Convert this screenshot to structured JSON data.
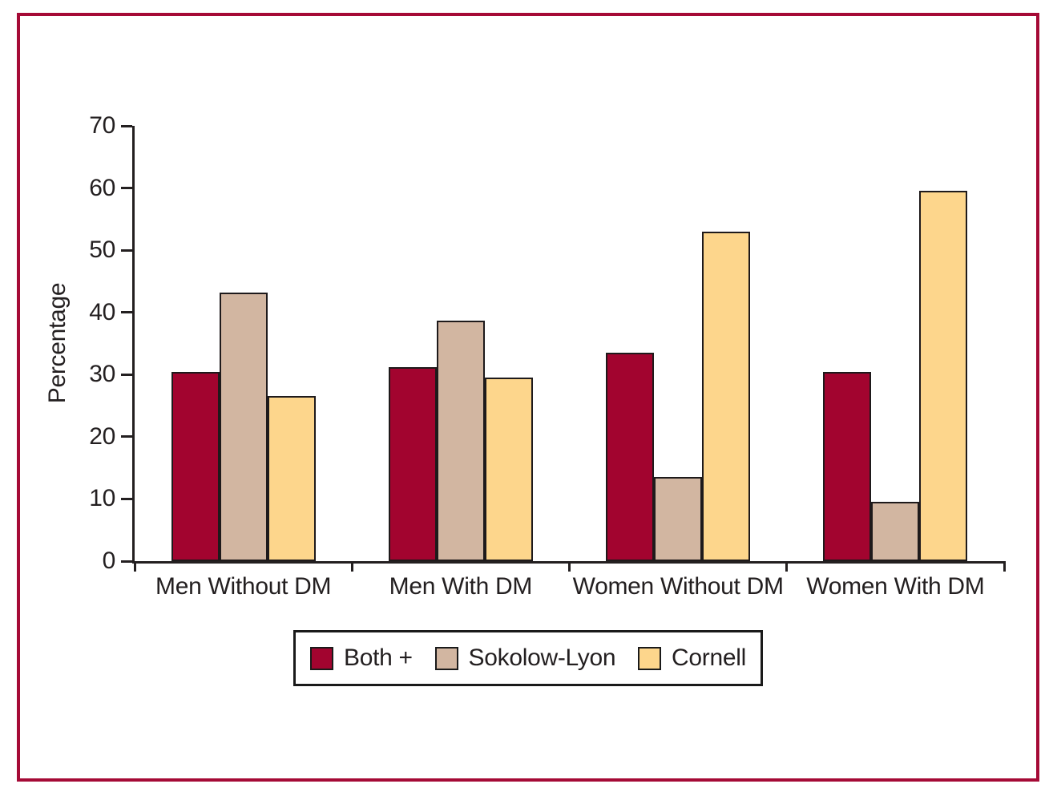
{
  "figure": {
    "frame_border_color": "#A50A36",
    "axis_color": "#231F20",
    "background_color": "#FFFFFF"
  },
  "chart_data": {
    "type": "bar",
    "title": "",
    "xlabel": "",
    "ylabel": "Percentage",
    "ylim": [
      0,
      70
    ],
    "yticks": [
      0,
      10,
      20,
      30,
      40,
      50,
      60,
      70
    ],
    "grid": false,
    "legend_position": "bottom",
    "categories": [
      "Men Without DM",
      "Men With DM",
      "Women Without DM",
      "Women With DM"
    ],
    "series": [
      {
        "name": "Both +",
        "color": "#A2042F",
        "values": [
          30.4,
          31.2,
          33.5,
          30.4
        ]
      },
      {
        "name": "Sokolow-Lyon",
        "color": "#D2B6A1",
        "values": [
          43.2,
          38.7,
          13.6,
          9.6
        ]
      },
      {
        "name": "Cornell",
        "color": "#FDD68C",
        "values": [
          26.5,
          29.5,
          53.0,
          59.6
        ]
      }
    ]
  }
}
